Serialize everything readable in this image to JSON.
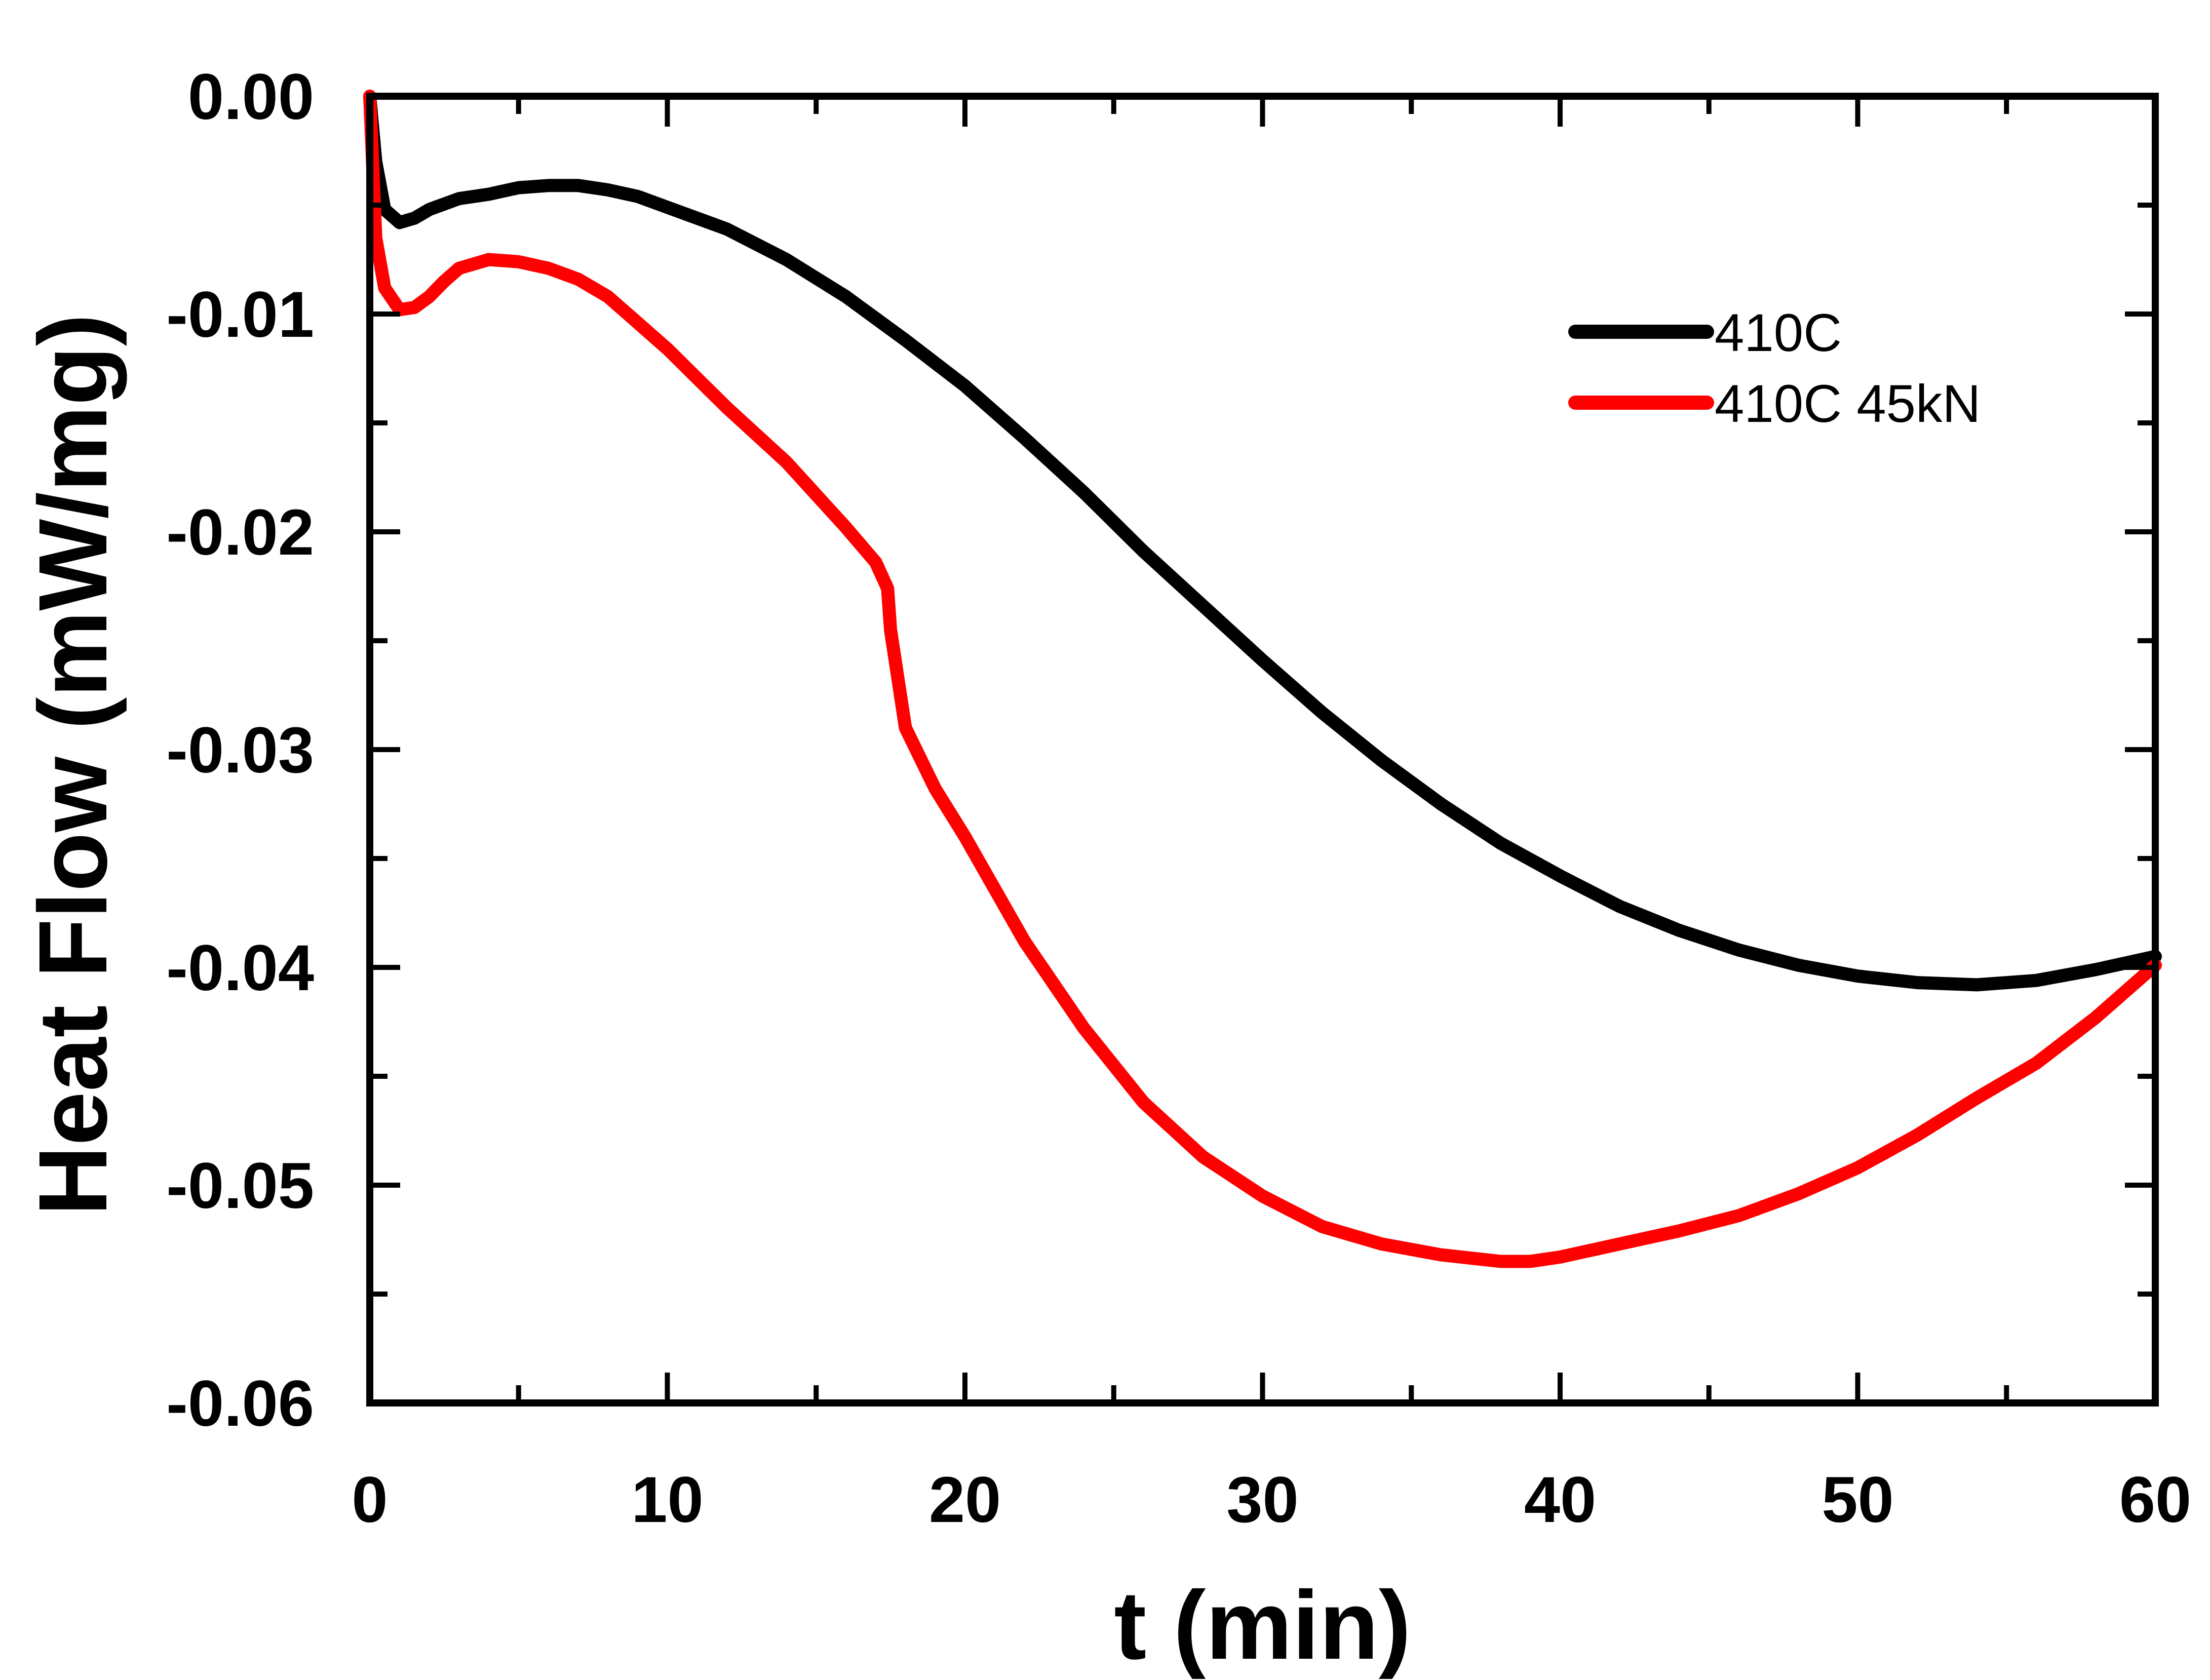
{
  "chart_data": {
    "type": "line",
    "title": "",
    "xlabel": "t (min)",
    "ylabel": "Heat Flow  (mW/mg)",
    "xlim": [
      0,
      60
    ],
    "ylim": [
      -0.06,
      0.0
    ],
    "xticks": [
      0,
      10,
      20,
      30,
      40,
      50,
      60
    ],
    "xtick_labels": [
      "0",
      "10",
      "20",
      "30",
      "40",
      "50",
      "60"
    ],
    "yticks": [
      0.0,
      -0.01,
      -0.02,
      -0.03,
      -0.04,
      -0.05,
      -0.06
    ],
    "ytick_labels": [
      "0.00",
      "-0.01",
      "-0.02",
      "-0.03",
      "-0.04",
      "-0.05",
      "-0.06"
    ],
    "grid": false,
    "legend_position": "top-right",
    "series": [
      {
        "name": "410C",
        "color": "#000000",
        "x": [
          0,
          0.2,
          0.5,
          1.0,
          1.5,
          2,
          3,
          4,
          5,
          6,
          7,
          8,
          9,
          10,
          12,
          14,
          16,
          18,
          20,
          22,
          24,
          26,
          28,
          30,
          32,
          34,
          36,
          38,
          40,
          42,
          44,
          46,
          48,
          50,
          52,
          54,
          56,
          58,
          60
        ],
        "y": [
          0.0,
          -0.003,
          -0.0052,
          -0.0058,
          -0.0056,
          -0.0052,
          -0.0047,
          -0.0045,
          -0.0042,
          -0.0041,
          -0.0041,
          -0.0043,
          -0.0046,
          -0.0051,
          -0.0061,
          -0.0075,
          -0.0092,
          -0.0112,
          -0.0133,
          -0.0157,
          -0.0182,
          -0.0209,
          -0.0234,
          -0.0259,
          -0.0283,
          -0.0305,
          -0.0325,
          -0.0343,
          -0.0358,
          -0.0372,
          -0.0383,
          -0.0392,
          -0.0399,
          -0.0404,
          -0.0407,
          -0.0408,
          -0.0406,
          -0.0401,
          -0.0395
        ]
      },
      {
        "name": "410C 45kN",
        "color": "#ff0000",
        "x": [
          0,
          0.2,
          0.5,
          1.0,
          1.5,
          2,
          2.5,
          3,
          4,
          5,
          6,
          7,
          8,
          9,
          10,
          12,
          14,
          16,
          17.0,
          17.4,
          17.5,
          18,
          19,
          20,
          22,
          24,
          26,
          28,
          30,
          32,
          34,
          36,
          38,
          39,
          40,
          42,
          44,
          46,
          48,
          50,
          52,
          54,
          56,
          58,
          60
        ],
        "y": [
          0.0,
          -0.0065,
          -0.0088,
          -0.0098,
          -0.0097,
          -0.0092,
          -0.0085,
          -0.0079,
          -0.0075,
          -0.0076,
          -0.0079,
          -0.0084,
          -0.0092,
          -0.0104,
          -0.0116,
          -0.0143,
          -0.0168,
          -0.0198,
          -0.0214,
          -0.0226,
          -0.0245,
          -0.029,
          -0.0318,
          -0.034,
          -0.0388,
          -0.0428,
          -0.0462,
          -0.0487,
          -0.0505,
          -0.0519,
          -0.0527,
          -0.0532,
          -0.0535,
          -0.0535,
          -0.0533,
          -0.0527,
          -0.0521,
          -0.0514,
          -0.0504,
          -0.0492,
          -0.0477,
          -0.046,
          -0.0444,
          -0.0423,
          -0.0399
        ]
      }
    ]
  }
}
